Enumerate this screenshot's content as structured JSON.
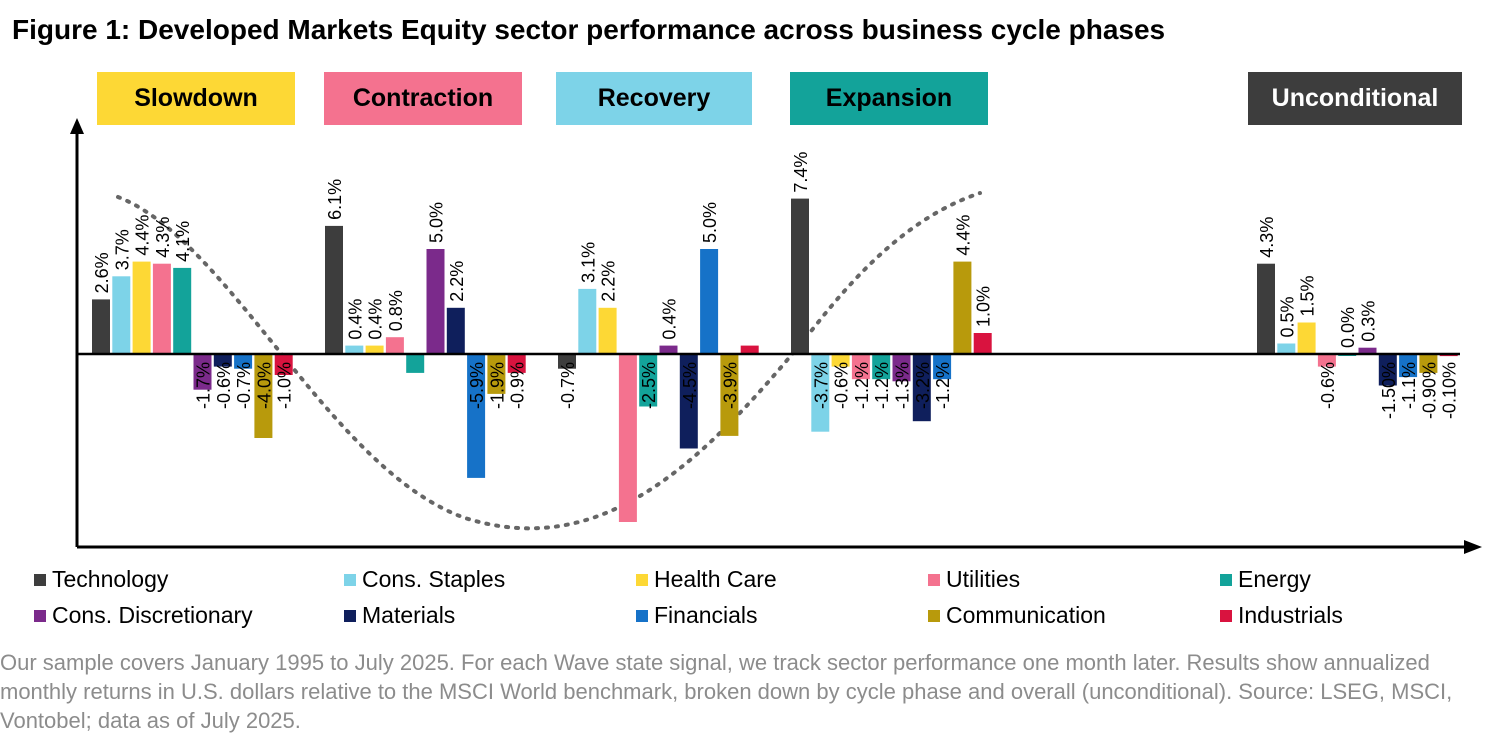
{
  "title": "Figure 1: Developed Markets Equity sector performance across business cycle phases",
  "chart_data": {
    "type": "bar",
    "categories": [
      "Slowdown",
      "Contraction",
      "Recovery",
      "Expansion",
      "Unconditional"
    ],
    "category_colors": [
      "#fdd835",
      "#f4728f",
      "#7dd3e8",
      "#13a39a",
      "#3d3d3d"
    ],
    "category_text_colors": [
      "#000000",
      "#000000",
      "#000000",
      "#000000",
      "#ffffff"
    ],
    "series": [
      {
        "name": "Technology",
        "color": "#3d3d3d",
        "values": [
          2.6,
          6.1,
          -0.7,
          7.4,
          4.3
        ],
        "labels": [
          "2.6%",
          "6.1%",
          "-0.7%",
          "7.4%",
          "4.3%"
        ]
      },
      {
        "name": "Cons. Staples",
        "color": "#7dd3e8",
        "values": [
          3.7,
          0.4,
          3.1,
          -3.7,
          0.5
        ],
        "labels": [
          "3.7%",
          "0.4%",
          "3.1%",
          "-3.7%",
          "0.5%"
        ]
      },
      {
        "name": "Health Care",
        "color": "#fdd835",
        "values": [
          4.4,
          0.4,
          2.2,
          -0.6,
          1.5
        ],
        "labels": [
          "4.4%",
          "0.4%",
          "2.2%",
          "-0.6%",
          "1.5%"
        ]
      },
      {
        "name": "Utilities",
        "color": "#f4728f",
        "values": [
          4.3,
          0.8,
          -8.0,
          -1.2,
          -0.6
        ],
        "labels": [
          "4.3%",
          "0.8%",
          "",
          "-1.2%",
          "-0.6%"
        ]
      },
      {
        "name": "Energy",
        "color": "#13a39a",
        "values": [
          4.1,
          -0.9,
          -2.5,
          -1.2,
          0.0
        ],
        "labels": [
          "4.1%",
          "",
          "-2.5%",
          "-1.2%",
          "0.0%"
        ]
      },
      {
        "name": "Cons. Discretionary",
        "color": "#7b2a8b",
        "values": [
          -1.7,
          5.0,
          0.4,
          -1.3,
          0.3
        ],
        "labels": [
          "-1.7%",
          "5.0%",
          "0.4%",
          "-1.3%",
          "0.3%"
        ]
      },
      {
        "name": "Materials",
        "color": "#0f1f5c",
        "values": [
          -0.6,
          2.2,
          -4.5,
          -3.2,
          -1.5
        ],
        "labels": [
          "-0.6%",
          "2.2%",
          "-4.5%",
          "-3.2%",
          "-1.50%"
        ]
      },
      {
        "name": "Financials",
        "color": "#1672c8",
        "values": [
          -0.7,
          -5.9,
          5.0,
          -1.2,
          -1.1
        ],
        "labels": [
          "-0.7%",
          "-5.9%",
          "5.0%",
          "-1.2%",
          "-1.1%"
        ]
      },
      {
        "name": "Communication",
        "color": "#b89a0c",
        "values": [
          -4.0,
          -1.9,
          -3.9,
          4.4,
          -0.9
        ],
        "labels": [
          "-4.0%",
          "-1.9%",
          "-3.9%",
          "4.4%",
          "-0.90%"
        ]
      },
      {
        "name": "Industrials",
        "color": "#d9133f",
        "values": [
          -1.0,
          -0.9,
          0.4,
          1.0,
          -0.1
        ],
        "labels": [
          "-1.0%",
          "-0.9%",
          "",
          "1.0%",
          "-0.10%"
        ]
      }
    ],
    "legend_placement": "bottom",
    "grid": false,
    "cycle_curve": "dotted",
    "axis_color": "#000000"
  },
  "footnote": "Our sample covers January 1995 to July 2025. For each Wave state signal, we track sector performance one month later. Results show annualized monthly returns in U.S. dollars relative to the MSCI World benchmark, broken down by cycle phase and overall (unconditional). Source: LSEG, MSCI, Vontobel; data as of July 2025."
}
